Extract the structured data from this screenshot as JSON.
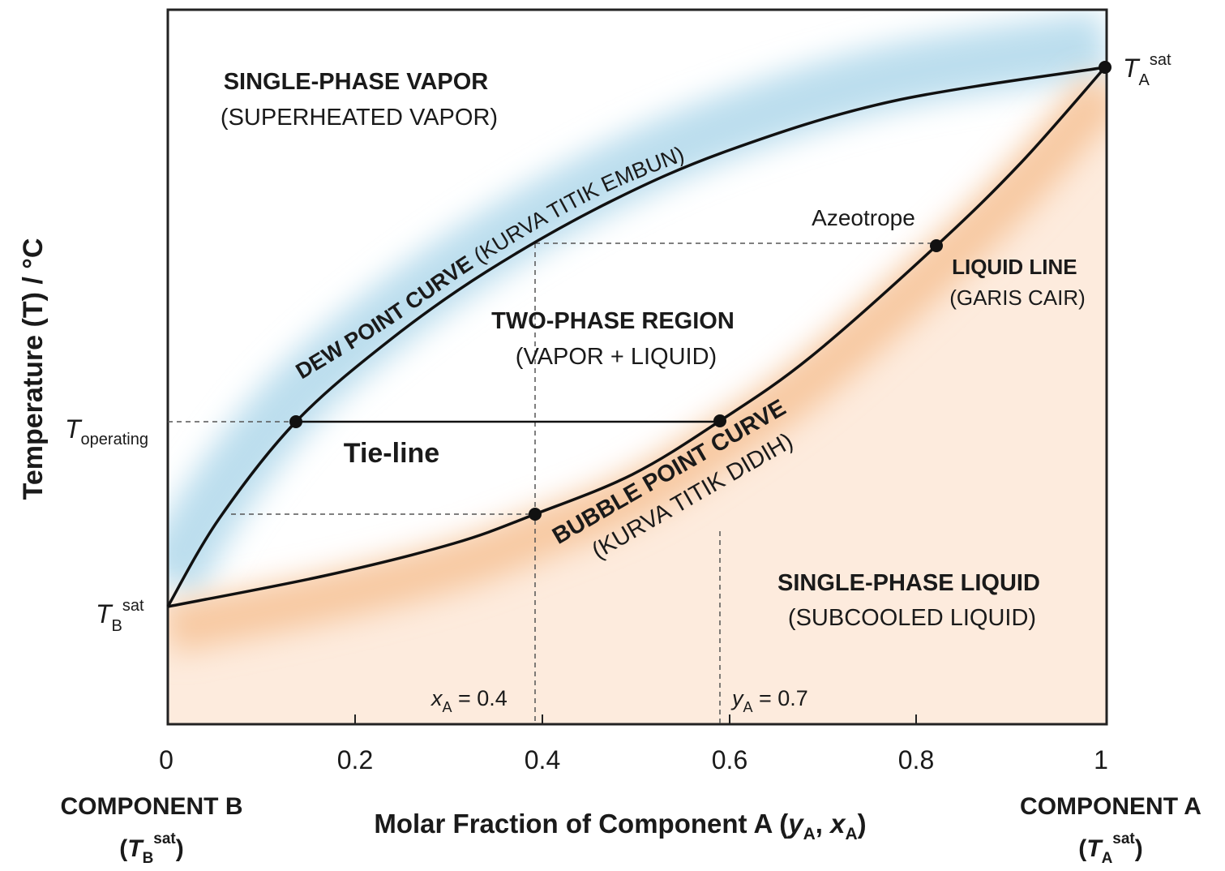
{
  "y_axis_label": "Temperature (T) / °C",
  "x_axis_label": [
    "Molar Fraction of Component A (",
    "y",
    "A",
    ", ",
    "x",
    "A",
    ")"
  ],
  "x_ticks": [
    "0",
    "0.2",
    "0.4",
    "0.6",
    "0.8",
    "1"
  ],
  "component_b": {
    "name": "COMPONENT B",
    "symbol": [
      "(",
      "T",
      "B",
      "sat",
      ")"
    ]
  },
  "component_a": {
    "name": "COMPONENT A",
    "symbol": [
      "(",
      "T",
      "A",
      "sat",
      ")"
    ]
  },
  "t_operating": [
    "T",
    "operating"
  ],
  "t_b_sat": [
    "T",
    "B",
    "sat"
  ],
  "t_a_sat": [
    "T",
    "A",
    "sat"
  ],
  "regions": {
    "vapor": [
      "SINGLE-PHASE VAPOR",
      "(SUPERHEATED VAPOR)"
    ],
    "two_phase": [
      "TWO-PHASE REGION",
      "(VAPOR + LIQUID)"
    ],
    "liquid": [
      "SINGLE-PHASE LIQUID",
      "(SUBCOOLED LIQUID)"
    ],
    "liquid_line": [
      "LIQUID LINE",
      "(GARIS CAIR)"
    ]
  },
  "dew_curve": [
    "DEW POINT CURVE",
    " (KURVA TITIK EMBUN)"
  ],
  "bubble_curve": [
    "BUBBLE POINT CURVE",
    "(KURVA TITIK DIDIH)"
  ],
  "azeotrope": "Azeotrope",
  "tie_line": "Tie-line",
  "x_a_label": [
    "x",
    "A",
    " = 0.4"
  ],
  "y_a_label": [
    "y",
    "A",
    " = 0.7"
  ]
}
